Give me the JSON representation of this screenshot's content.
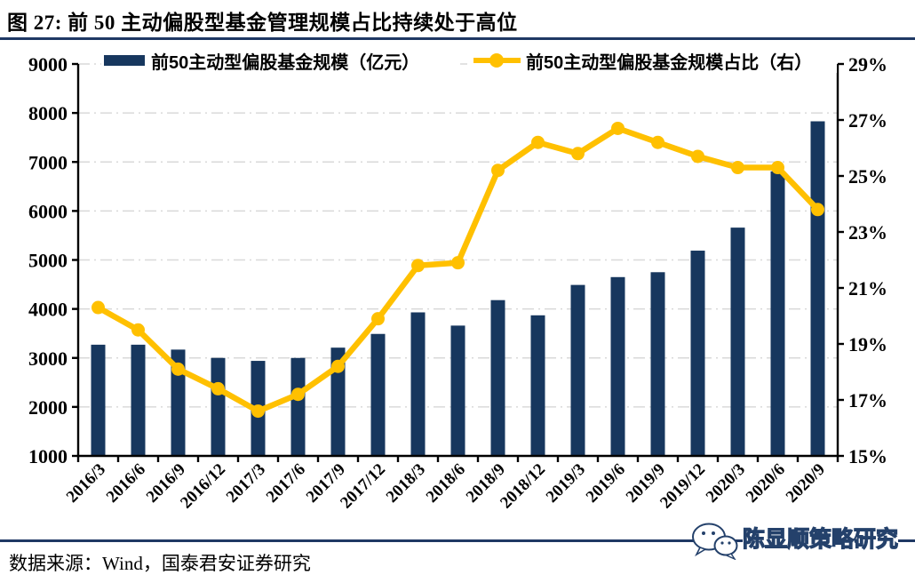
{
  "title": "图 27:  前 50 主动偏股型基金管理规模占比持续处于高位",
  "source": "数据来源：Wind，国泰君安证券研究",
  "watermark": {
    "icon": "wechat-icon",
    "text": "陈显顺策略研究"
  },
  "colors": {
    "bar": "#17375E",
    "line": "#FFC000",
    "grid": "#D9D9D9",
    "axis": "#000000",
    "rule": "#1F3864",
    "text": "#000000"
  },
  "chart_data": {
    "type": "bar+line",
    "title": "前50主动偏股型基金管理规模占比持续处于高位",
    "categories": [
      "2016/3",
      "2016/6",
      "2016/9",
      "2016/12",
      "2017/3",
      "2017/6",
      "2017/9",
      "2017/12",
      "2018/3",
      "2018/6",
      "2018/9",
      "2018/12",
      "2019/3",
      "2019/6",
      "2019/9",
      "2019/12",
      "2020/3",
      "2020/6",
      "2020/9"
    ],
    "series": [
      {
        "name": "前50主动型偏股基金规模（亿元）",
        "type": "bar",
        "axis": "left",
        "values": [
          3270,
          3270,
          3170,
          3000,
          2940,
          3000,
          3210,
          3490,
          3930,
          3660,
          4180,
          3870,
          4490,
          4650,
          4750,
          5190,
          5660,
          6810,
          7830
        ]
      },
      {
        "name": "前50主动型偏股基金规模占比（右）",
        "type": "line",
        "axis": "right",
        "values": [
          20.3,
          19.5,
          18.1,
          17.4,
          16.6,
          17.2,
          18.2,
          19.9,
          21.8,
          21.9,
          25.2,
          26.2,
          25.8,
          26.7,
          26.2,
          25.7,
          25.3,
          25.3,
          23.8
        ]
      }
    ],
    "left_axis": {
      "min": 1000,
      "max": 9000,
      "step": 1000,
      "tick_labels": [
        "9000",
        "8000",
        "7000",
        "6000",
        "5000",
        "4000",
        "3000",
        "2000",
        "1000"
      ]
    },
    "right_axis": {
      "min": 15,
      "max": 29,
      "step": 2,
      "unit": "%",
      "tick_labels": [
        "29%",
        "27%",
        "25%",
        "23%",
        "21%",
        "19%",
        "17%",
        "15%"
      ]
    },
    "grid": true,
    "legend_position": "top"
  }
}
